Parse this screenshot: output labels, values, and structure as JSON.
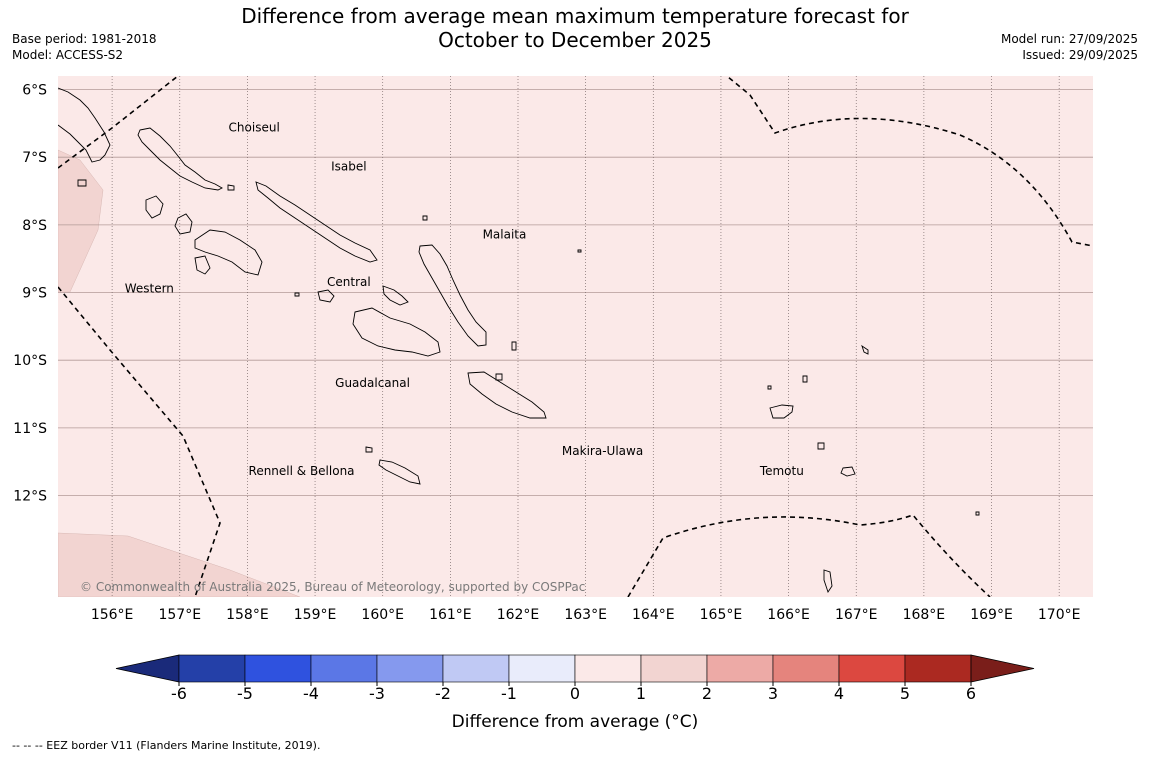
{
  "title_line1": "Difference from average mean maximum temperature forecast for",
  "title_line2": "October to December 2025",
  "meta_left": {
    "base_period": "Base period: 1981-2018",
    "model": "Model: ACCESS-S2"
  },
  "meta_right": {
    "model_run": "Model run: 27/09/2025",
    "issued": "Issued: 29/09/2025"
  },
  "map": {
    "lon_range": [
      155.2,
      170.5
    ],
    "lat_range": [
      -13.5,
      -5.8
    ],
    "lat_ticks": [
      {
        "value": -6,
        "label": "6°S"
      },
      {
        "value": -7,
        "label": "7°S"
      },
      {
        "value": -8,
        "label": "8°S"
      },
      {
        "value": -9,
        "label": "9°S"
      },
      {
        "value": -10,
        "label": "10°S"
      },
      {
        "value": -11,
        "label": "11°S"
      },
      {
        "value": -12,
        "label": "12°S"
      }
    ],
    "lon_ticks": [
      {
        "value": 156,
        "label": "156°E"
      },
      {
        "value": 157,
        "label": "157°E"
      },
      {
        "value": 158,
        "label": "158°E"
      },
      {
        "value": 159,
        "label": "159°E"
      },
      {
        "value": 160,
        "label": "160°E"
      },
      {
        "value": 161,
        "label": "161°E"
      },
      {
        "value": 162,
        "label": "162°E"
      },
      {
        "value": 163,
        "label": "163°E"
      },
      {
        "value": 164,
        "label": "164°E"
      },
      {
        "value": 165,
        "label": "165°E"
      },
      {
        "value": 166,
        "label": "166°E"
      },
      {
        "value": 167,
        "label": "167°E"
      },
      {
        "value": 168,
        "label": "168°E"
      },
      {
        "value": 169,
        "label": "169°E"
      },
      {
        "value": 170,
        "label": "170°E"
      }
    ],
    "background_class_color": "#fbe9e8",
    "warm_patch_color": "#f2d4d1",
    "province_labels": [
      {
        "name": "Choiseul",
        "lon": 158.1,
        "lat": -6.62
      },
      {
        "name": "Isabel",
        "lon": 159.5,
        "lat": -7.2
      },
      {
        "name": "Malaita",
        "lon": 161.8,
        "lat": -8.2
      },
      {
        "name": "Western",
        "lon": 156.55,
        "lat": -9.0
      },
      {
        "name": "Central",
        "lon": 159.5,
        "lat": -8.9
      },
      {
        "name": "Guadalcanal",
        "lon": 159.85,
        "lat": -10.4
      },
      {
        "name": "Makira-Ulawa",
        "lon": 163.25,
        "lat": -11.4
      },
      {
        "name": "Rennell & Bellona",
        "lon": 158.8,
        "lat": -11.7
      },
      {
        "name": "Temotu",
        "lon": 165.9,
        "lat": -11.7
      }
    ],
    "copyright": "© Commonwealth of Australia 2025, Bureau of Meteorology, supported by COSPPac"
  },
  "colorbar": {
    "label": "Difference from average (°C)",
    "ticks": [
      "-6",
      "-5",
      "-4",
      "-3",
      "-2",
      "-1",
      "0",
      "1",
      "2",
      "3",
      "4",
      "5",
      "6"
    ],
    "colors": [
      "#2440a8",
      "#2f52df",
      "#5b77e6",
      "#8599ee",
      "#c0c9f4",
      "#e9ecfb",
      "#fbe9e8",
      "#f2d4d1",
      "#edaaa6",
      "#e5847d",
      "#dc4840",
      "#ab2921"
    ],
    "under_color": "#1a2a7a",
    "over_color": "#7a1e1a"
  },
  "footnote": "--  --  -- EEZ border V11 (Flanders Marine Institute, 2019)."
}
